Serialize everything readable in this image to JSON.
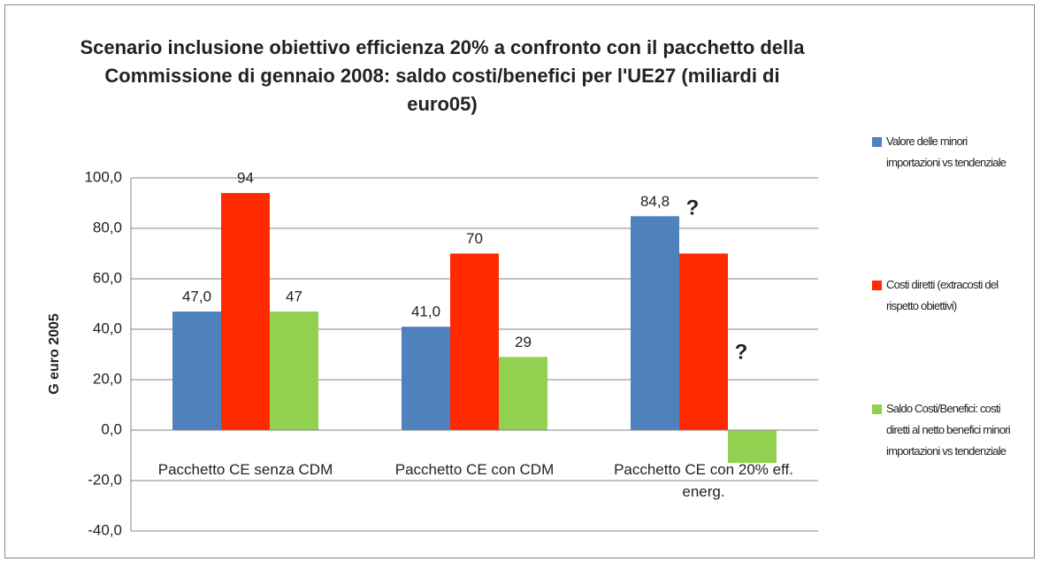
{
  "chart_data": {
    "type": "bar",
    "title": "Scenario inclusione obiettivo efficienza 20% a confronto con il pacchetto della Commissione di gennaio 2008: saldo costi/benefici per l'UE27 (miliardi di euro05)",
    "y_label": "G euro 2005",
    "categories": [
      "Pacchetto CE senza CDM",
      "Pacchetto CE con CDM",
      "Pacchetto CE con 20% eff. energ."
    ],
    "series": [
      {
        "name": "Valore delle minori importazioni vs tendenziale",
        "color": "#4f81bd",
        "values": [
          47,
          41,
          84.8
        ],
        "value_labels": [
          "47,0",
          "41,0",
          "84,8"
        ]
      },
      {
        "name": "Costi diretti (extracosti del rispetto obiettivi)",
        "color": "#ff2a00",
        "values": [
          94,
          70,
          70
        ],
        "value_labels": [
          "94",
          "70",
          null
        ]
      },
      {
        "name": "Saldo Costi/Benefici: costi diretti al netto benefici minori importazioni vs tendenziale",
        "color": "#92d050",
        "values": [
          47,
          29,
          -13
        ],
        "value_labels": [
          "47",
          "29",
          null
        ]
      }
    ],
    "annotations": [
      "?",
      "?"
    ],
    "ylim": [
      -40,
      100
    ],
    "yticks": [
      {
        "value": -40,
        "label": "-40,0"
      },
      {
        "value": -20,
        "label": "-20,0"
      },
      {
        "value": 0,
        "label": "0,0"
      },
      {
        "value": 20,
        "label": "20,0"
      },
      {
        "value": 40,
        "label": "40,0"
      },
      {
        "value": 60,
        "label": "60,0"
      },
      {
        "value": 80,
        "label": "80,0"
      },
      {
        "value": 100,
        "label": "100,0"
      }
    ],
    "grid": true,
    "legend": "right"
  }
}
